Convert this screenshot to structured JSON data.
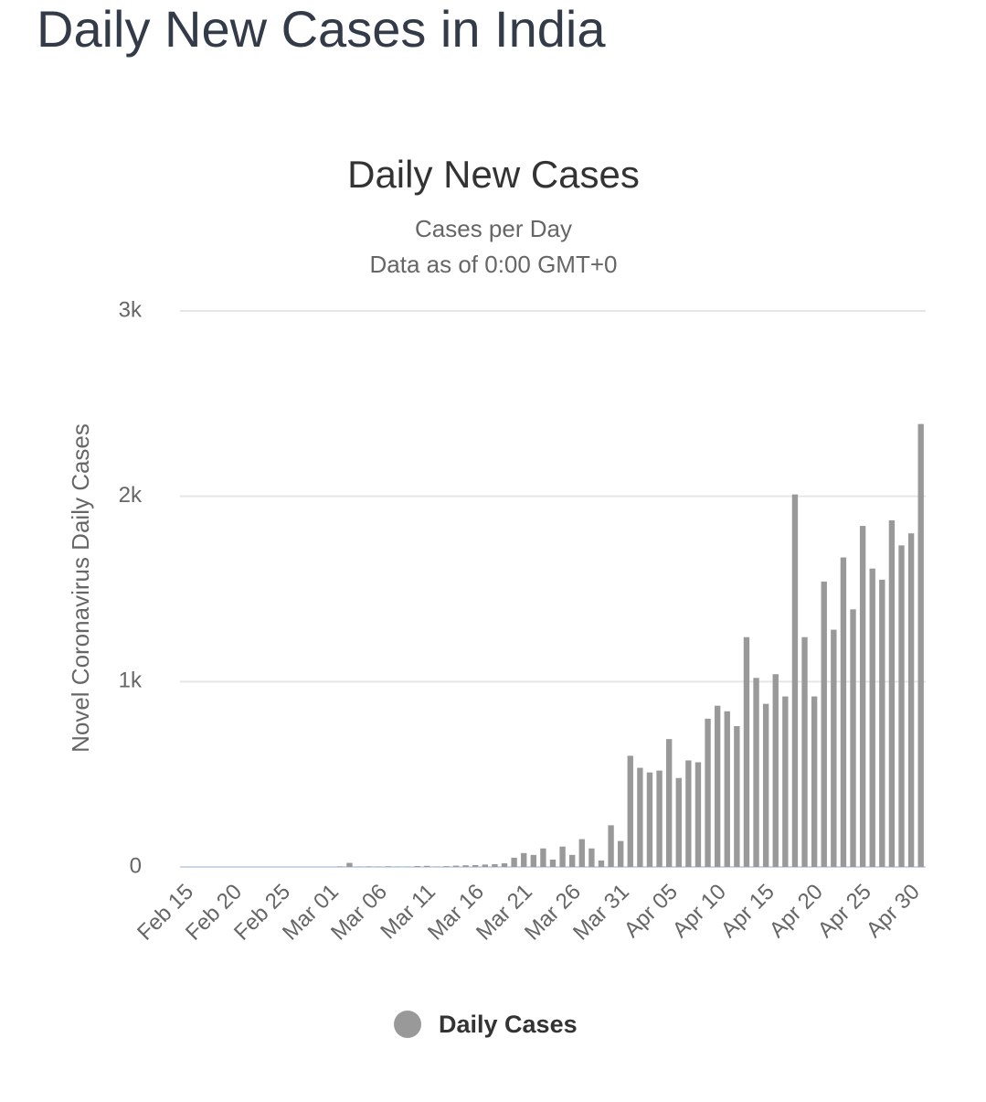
{
  "page_title": "Daily New Cases in India",
  "chart_data": {
    "type": "bar",
    "title": "Daily New Cases",
    "subtitle": [
      "Cases per Day",
      "Data as of 0:00 GMT+0"
    ],
    "y_label": "Novel Coronavirus Daily Cases",
    "categories": [
      "Feb 15",
      null,
      null,
      null,
      null,
      "Feb 20",
      null,
      null,
      null,
      null,
      "Feb 25",
      null,
      null,
      null,
      null,
      "Mar 01",
      null,
      null,
      null,
      null,
      "Mar 06",
      null,
      null,
      null,
      null,
      "Mar 11",
      null,
      null,
      null,
      null,
      "Mar 16",
      null,
      null,
      null,
      null,
      "Mar 21",
      null,
      null,
      null,
      null,
      "Mar 26",
      null,
      null,
      null,
      null,
      "Mar 31",
      null,
      null,
      null,
      null,
      "Apr 05",
      null,
      null,
      null,
      null,
      "Apr 10",
      null,
      null,
      null,
      null,
      "Apr 15",
      null,
      null,
      null,
      null,
      "Apr 20",
      null,
      null,
      null,
      null,
      "Apr 25",
      null,
      null,
      null,
      null,
      "Apr 30",
      null
    ],
    "series": [
      {
        "name": "Daily Cases",
        "color": "#999999",
        "values": [
          0,
          0,
          0,
          0,
          0,
          0,
          0,
          0,
          0,
          0,
          0,
          0,
          0,
          0,
          0,
          0,
          2,
          22,
          1,
          2,
          1,
          3,
          1,
          1,
          5,
          6,
          1,
          4,
          7,
          9,
          10,
          13,
          15,
          20,
          50,
          75,
          65,
          100,
          40,
          110,
          65,
          150,
          100,
          35,
          225,
          140,
          600,
          535,
          510,
          520,
          690,
          480,
          575,
          565,
          800,
          870,
          840,
          760,
          1240,
          1020,
          880,
          1040,
          920,
          2010,
          1240,
          920,
          1540,
          1280,
          1670,
          1390,
          1840,
          1610,
          1550,
          1870,
          1735,
          1800,
          2390
        ]
      }
    ],
    "ylim": [
      0,
      3000
    ],
    "yticks": [
      0,
      {
        "value": 1000,
        "label": "1k"
      },
      {
        "value": 2000,
        "label": "2k"
      },
      {
        "value": 3000,
        "label": "3k"
      }
    ],
    "grid": true,
    "legend": "bottom"
  }
}
